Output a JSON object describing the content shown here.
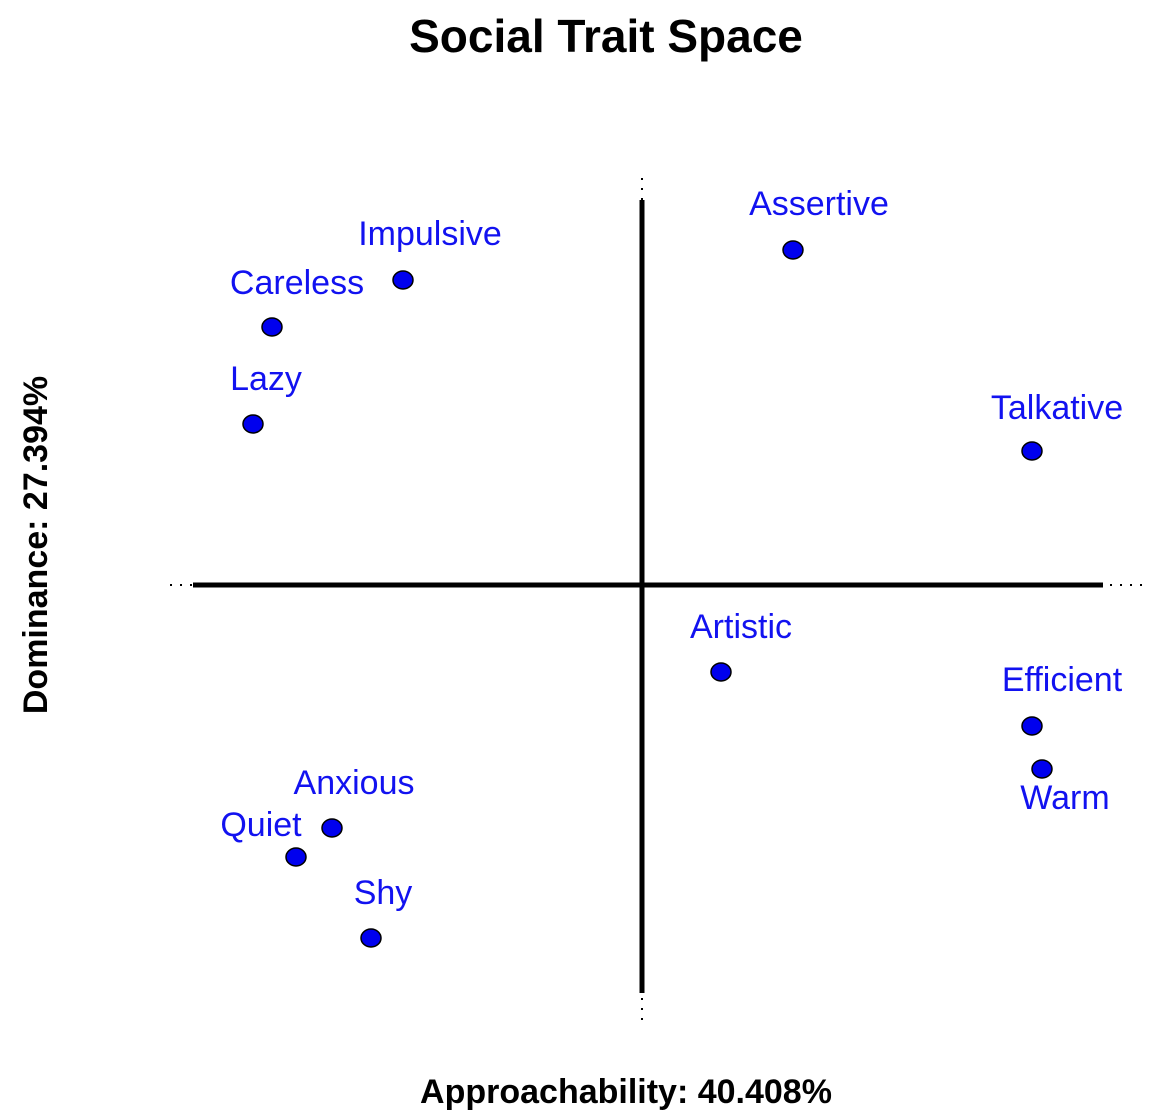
{
  "chart_data": {
    "type": "scatter",
    "title": "Social Trait Space",
    "xlabel": "Approachability: 40.408%",
    "ylabel": "Dominance: 27.394%",
    "labels": [
      "Assertive",
      "Impulsive",
      "Careless",
      "Lazy",
      "Talkative",
      "Artistic",
      "Efficient",
      "Warm",
      "Anxious",
      "Quiet",
      "Shy"
    ],
    "x": [
      0.755,
      -1.195,
      -1.85,
      -1.945,
      1.95,
      0.395,
      1.95,
      2.0,
      -1.55,
      -1.73,
      -1.355
    ],
    "y": [
      1.675,
      1.525,
      1.29,
      0.805,
      0.67,
      -0.435,
      -0.705,
      -0.92,
      -1.215,
      -1.36,
      -1.765
    ],
    "color": "#0000ee",
    "xlim": [
      -2.36,
      2.54
    ],
    "ylim": [
      -2.175,
      2.035
    ]
  }
}
